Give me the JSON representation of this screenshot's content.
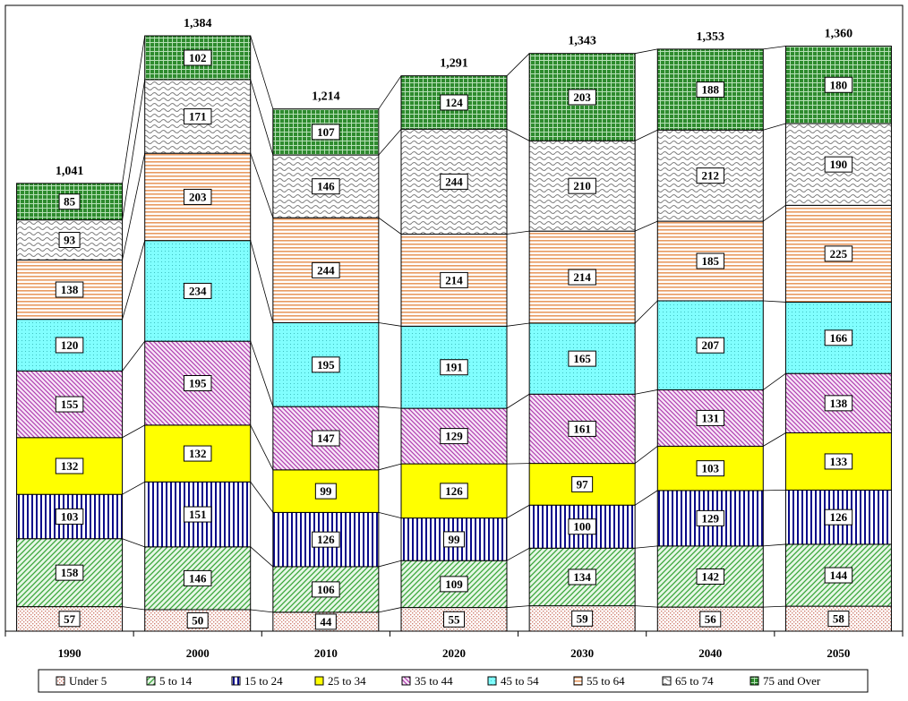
{
  "chart_data": {
    "type": "bar",
    "stacked": true,
    "title": "",
    "xlabel": "",
    "ylabel": "",
    "categories": [
      "1990",
      "2000",
      "2010",
      "2020",
      "2030",
      "2040",
      "2050"
    ],
    "totals": [
      "1,041",
      "1,384",
      "1,214",
      "1,291",
      "1,343",
      "1,353",
      "1,360"
    ],
    "series": [
      {
        "name": "Under 5",
        "values": [
          57,
          50,
          44,
          55,
          59,
          56,
          58
        ]
      },
      {
        "name": "5 to 14",
        "values": [
          158,
          146,
          106,
          109,
          134,
          142,
          144
        ]
      },
      {
        "name": "15 to 24",
        "values": [
          103,
          151,
          126,
          99,
          100,
          129,
          126
        ]
      },
      {
        "name": "25 to 34",
        "values": [
          132,
          132,
          99,
          126,
          97,
          103,
          133
        ]
      },
      {
        "name": "35 to 44",
        "values": [
          155,
          195,
          147,
          129,
          161,
          131,
          138
        ]
      },
      {
        "name": "45 to 54",
        "values": [
          120,
          234,
          195,
          191,
          165,
          207,
          166
        ]
      },
      {
        "name": "55 to 64",
        "values": [
          138,
          203,
          244,
          214,
          214,
          185,
          225
        ]
      },
      {
        "name": "65 to 74",
        "values": [
          93,
          171,
          146,
          244,
          210,
          212,
          190
        ]
      },
      {
        "name": "75 and Over",
        "values": [
          85,
          102,
          107,
          124,
          203,
          188,
          180
        ]
      }
    ],
    "ylim": [
      0,
      1384
    ],
    "grid": false,
    "legend_position": "bottom",
    "colors": {
      "Under 5": "#f4c4b0",
      "5 to 14": "#8fd48f",
      "15 to 24": "#0a0a8a",
      "25 to 34": "#ffff00",
      "35 to 44": "#cc66cc",
      "45 to 54": "#80ffff",
      "55 to 64": "#e8a070",
      "65 to 74": "#909090",
      "75 and Over": "#2a8a2a"
    }
  }
}
